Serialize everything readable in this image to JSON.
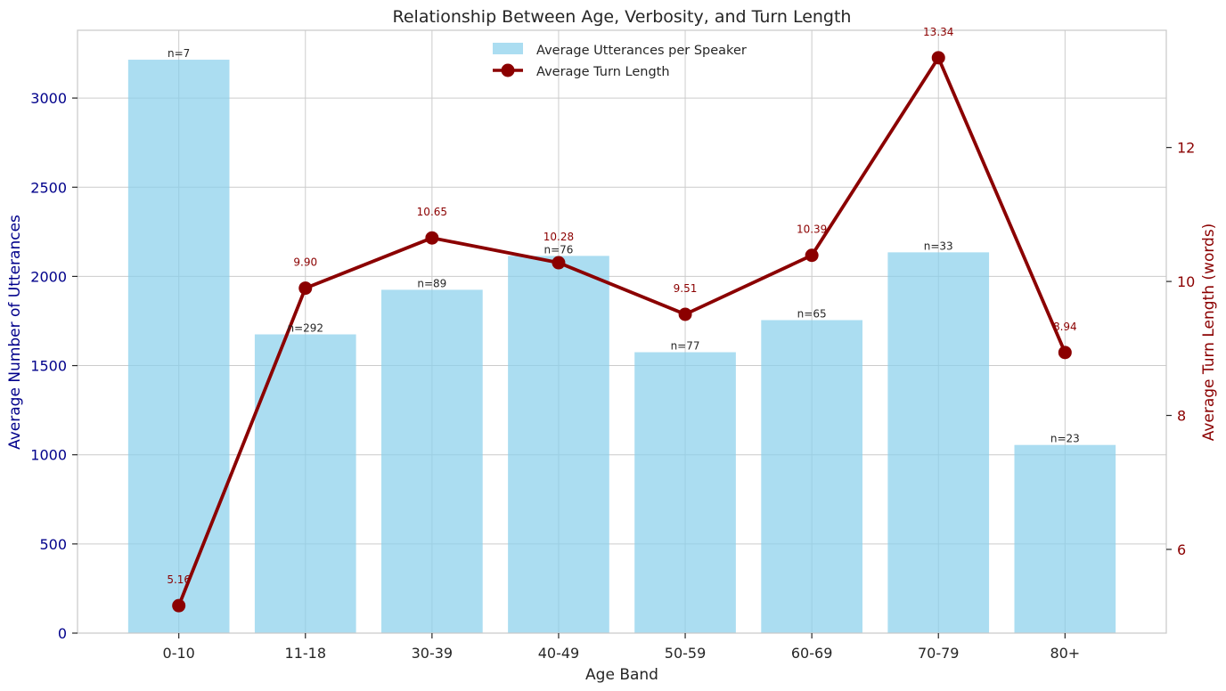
{
  "chart_data": {
    "type": "bar",
    "title": "Relationship Between Age, Verbosity, and Turn Length",
    "xlabel": "Age Band",
    "ylabel_left": "Average Number of Utterances",
    "ylabel_right": "Average Turn Length (words)",
    "categories": [
      "0-10",
      "11-18",
      "30-39",
      "40-49",
      "50-59",
      "60-69",
      "70-79",
      "80+"
    ],
    "ylim_left": [
      0,
      3380
    ],
    "ylim_right": [
      4.75,
      13.75
    ],
    "yticks_left": [
      0,
      500,
      1000,
      1500,
      2000,
      2500,
      3000
    ],
    "yticks_right": [
      6,
      8,
      10,
      12
    ],
    "grid": true,
    "legend_position": "top-center",
    "series": [
      {
        "name": "Average Utterances per Speaker",
        "kind": "bar",
        "axis": "left",
        "color": "#87ceeb",
        "values": [
          3215,
          1675,
          1925,
          2115,
          1575,
          1755,
          2135,
          1055
        ],
        "labels": [
          "n=7",
          "n=292",
          "n=89",
          "n=76",
          "n=77",
          "n=65",
          "n=33",
          "n=23"
        ]
      },
      {
        "name": "Average Turn Length",
        "kind": "line",
        "axis": "right",
        "color": "#8b0000",
        "values": [
          5.16,
          9.9,
          10.65,
          10.28,
          9.51,
          10.39,
          13.34,
          8.94
        ],
        "labels": [
          "5.16",
          "9.90",
          "10.65",
          "10.28",
          "9.51",
          "10.39",
          "13.34",
          "8.94"
        ]
      }
    ],
    "colors": {
      "left_axis": "#00008b",
      "right_axis": "#8b0000",
      "text": "#262626"
    }
  }
}
